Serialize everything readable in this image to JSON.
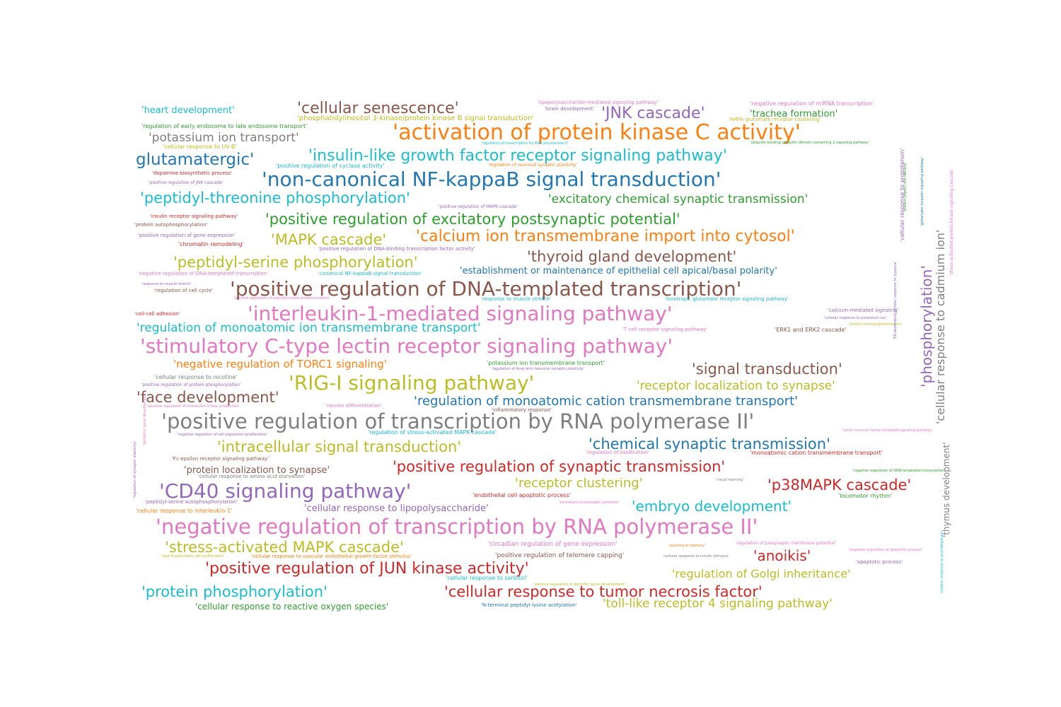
{
  "palette": {
    "blue": "#1f77b4",
    "orange": "#ff7f0e",
    "green": "#2ca02c",
    "red": "#d62728",
    "purple": "#9467bd",
    "brown": "#8c564b",
    "pink": "#e377c2",
    "gray": "#7f7f7f",
    "olive": "#bcbd22",
    "cyan": "#17becf"
  },
  "words": [
    "'heart development'",
    "'cellular senescence'",
    "'lipopolysaccharide-mediated signaling pathway'",
    "'brain development'",
    "'negative regulation of miRNA transcription'",
    "'phosphatidylinositol 3-kinase/protein kinase B signal transduction'",
    "'JNK cascade'",
    "'trachea formation'",
    "'AMPA glutamate receptor clustering'",
    "'regulation of early endosome to late endosome transport'",
    "'activation of protein kinase C activity'",
    "'potassium ion transport'",
    "'cellular response to UV-B'",
    "'regulation of transcription by RNA polymerase II'",
    "'ubiquitin-binding ubiquitin domain containing 2 signaling pathway'",
    "glutamatergic'",
    "'insulin-like growth factor receptor signaling pathway'",
    "'positive regulation of cyclase activity'",
    "'regulation of neuronal synaptic plasticity'",
    "'dopamine biosynthetic process'",
    "'non-canonical NF-kappaB signal transduction'",
    "'positive regulation of JNK cascade'",
    "'peptidyl-threonine phosphorylation'",
    "'excitatory chemical synaptic transmission'",
    "'positive regulation of MAPK cascade'",
    "'insulin receptor signaling pathway'",
    "'positive regulation of excitatory postsynaptic potential'",
    "'protein autophosphorylation'",
    "'positive regulation of gene expression'",
    "'MAPK cascade'",
    "'calcium ion transmembrane import into cytosol'",
    "'chromatin remodeling'",
    "'positive regulation of DNA-binding transcription factor activity'",
    "'thyroid gland development'",
    "'peptidyl-serine phosphorylation'",
    "'negative regulation of DNA-templated transcription'",
    "'canonical NF-kappaB signal transduction'",
    "'establishment or maintenance of epithelial cell apical/basal polarity'",
    "'response to muscle stretch'",
    "'regulation of cell cycle'",
    "'positive regulation of peptidyl-serine phosphorylation'",
    "'positive regulation of DNA-templated transcription'",
    "'response to muscle stretch'",
    "'ionotropic glutamate receptor signaling pathway'",
    "'cell-cell adhesion'",
    "'interleukin-1-mediated signaling pathway'",
    "'calcium-mediated signaling'",
    "'cellular response to potassium ion'",
    "'protein homooligomerization'",
    "'regulation of monoatomic ion transmembrane transport'",
    "'T cell receptor signaling pathway'",
    "'ERK1 and ERK2 cascade'",
    "'stimulatory C-type lectin receptor signaling pathway'",
    "'negative regulation of TORC1 signaling'",
    "'potassium ion transmembrane transport'",
    "'regulation of long-term neuronal synaptic plasticity'",
    "'signal transduction'",
    "'cellular response to nicotine'",
    "'positive regulation of protein phosphorylation'",
    "'RIG-I signaling pathway'",
    "'receptor localization to synapse'",
    "'face development'",
    "'positive regulation of interleukin-1 beta production'",
    "'neuron differentiation'",
    "'regulation of monoatomic cation transmembrane transport'",
    "'inflammatory response'",
    "'positive regulation of transcription by RNA polymerase II'",
    "'negative regulation of cell population proliferation'",
    "'regulation of stress-activated MAPK cascade'",
    "'tumor necrosis factor-mediated signaling pathway'",
    "'intracellular signal transduction'",
    "'chemical synaptic transmission'",
    "'regulation of ossification'",
    "'monoatomic cation transmembrane transport'",
    "'Fc-epsilon receptor signaling pathway'",
    "'protein localization to synapse'",
    "'positive regulation of synaptic transmission'",
    "'negative regulation of DNA-templated transcription'",
    "'cellular response to amino acid starvation'",
    "'receptor clustering'",
    "'visual learning'",
    "'CD40 signaling pathway'",
    "'p38MAPK cascade'",
    "'endothelial cell apoptotic process'",
    "'locomotor rhythm'",
    "'peptidyl-serine autophosphorylation'",
    "'excitatory postsynaptic potential'",
    "'embryo development'",
    "'cellular response to interleukin-1'",
    "'cellular response to lipopolysaccharide'",
    "'negative regulation of transcription by RNA polymerase II'",
    "'stress-activated MAPK cascade'",
    "'circadian regulation of gene expression'",
    "'learning or memory'",
    "'regulation of presynaptic membrane potential'",
    "'anoikis'",
    "'negative regulation of apoptotic process'",
    "'type B pancreatic cell proliferation'",
    "'cellular response to vascular endothelial growth factor stimulus'",
    "'positive regulation of telomere capping'",
    "'cellular response to insulin stimulus'",
    "'apoptotic process'",
    "'positive regulation of JUN kinase activity'",
    "'cellular response to sorbitol'",
    "'regulation of Golgi inheritance'",
    "'positive regulation of dendritic spine development'",
    "'protein phosphorylation'",
    "'cellular response to tumor necrosis factor'",
    "'cellular response to reactive oxygen species'",
    "'N-terminal peptidyl-lysine acetylation'",
    "'toll-like receptor 4 signaling pathway'",
    "'phosphorylation'",
    "'cellular response to cadmium ion'",
    "'stress-activated protein kinase signaling cascade'",
    "'thymus development'",
    "'ER-dependent cellular response to hypoxia'",
    "'cellular response to angiotensin'",
    "'cellular response to peptidoglycan'",
    "'glutamate receptor signaling pathway'",
    "'regulation of synaptic plasticity'",
    "'dendritic spine development'",
    "'protein import into nucleus'"
  ]
}
